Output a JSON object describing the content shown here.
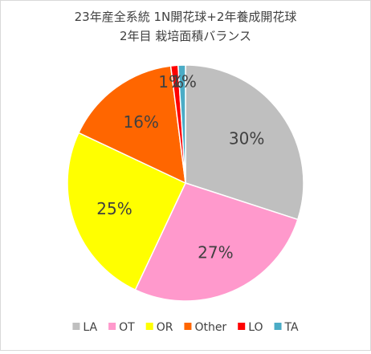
{
  "chart_data": {
    "type": "pie",
    "title": [
      "23年産全系統 1N開花球+2年養成開花球",
      "2年目 栽培面積バランス"
    ],
    "categories": [
      "LA",
      "OT",
      "OR",
      "Other",
      "LO",
      "TA"
    ],
    "values": [
      30,
      27,
      25,
      16,
      1,
      1
    ],
    "value_labels": [
      "30%",
      "27%",
      "25%",
      "16%",
      "1%",
      "1%"
    ],
    "colors": [
      "#bfbfbf",
      "#ff99cc",
      "#ffff00",
      "#ff6600",
      "#ff0000",
      "#4bacc6"
    ],
    "legend": "bottom"
  }
}
